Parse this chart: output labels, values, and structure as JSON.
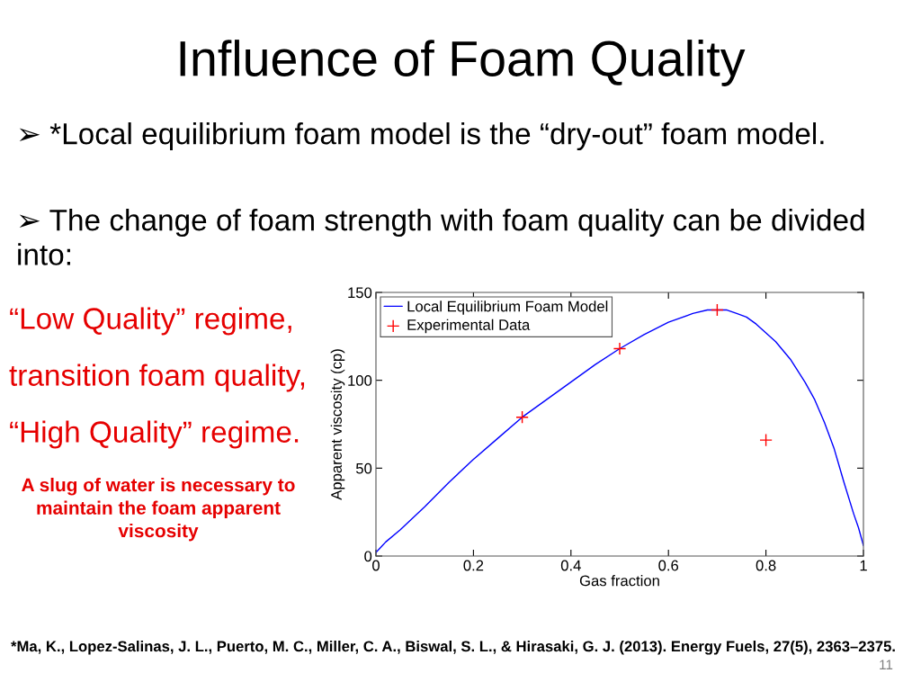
{
  "chart_data": {
    "type": "line",
    "title": "Influence of Foam Quality",
    "xlabel": "Gas fraction",
    "ylabel": "Apparent viscosity (cp)",
    "xlim": [
      0,
      1
    ],
    "xticks": [
      0,
      0.2,
      0.4,
      0.6,
      0.8,
      1
    ],
    "ylim": [
      0,
      150
    ],
    "yticks": [
      0,
      50,
      100,
      150
    ],
    "legend": "top left",
    "series": [
      {
        "name": "Local Equilibrium Foam Model",
        "color": "#0000ff",
        "line_style": "solid",
        "x": [
          0,
          0.01,
          0.02,
          0.05,
          0.1,
          0.15,
          0.2,
          0.25,
          0.3,
          0.35,
          0.4,
          0.45,
          0.5,
          0.55,
          0.6,
          0.65,
          0.68,
          0.7,
          0.72,
          0.74,
          0.76,
          0.78,
          0.8,
          0.82,
          0.85,
          0.88,
          0.9,
          0.92,
          0.94,
          0.96,
          0.98,
          0.99,
          1
        ],
        "values": [
          2,
          5,
          8,
          15,
          28,
          42,
          55,
          67,
          79,
          89,
          99,
          109,
          118,
          126,
          133,
          138,
          140,
          140,
          140,
          138,
          136,
          132,
          127,
          122,
          112,
          99,
          89,
          76,
          61,
          42,
          24,
          16,
          6
        ]
      },
      {
        "name": "Experimental Data",
        "type": "scatter",
        "marker": "cross",
        "color": "#ff0000",
        "x": [
          0.3,
          0.5,
          0.7,
          0.8
        ],
        "values": [
          79,
          118,
          140,
          66
        ]
      }
    ],
    "annotations": [
      "➢ *Local equilibrium foam model is the “dry-out” foam model.",
      "➢ The change of foam strength with foam quality can be divided into:",
      "“Low Quality” regime,",
      "transition foam quality,",
      "“High Quality” regime.",
      "A slug of water is necessary to maintain the foam apparent viscosity",
      "*Ma, K., Lopez-Salinas, J. L., Puerto, M. C., Miller, C. A., Biswal, S. L., & Hirasaki, G. J. (2013). Energy Fuels, 27(5), 2363–2375.",
      "11"
    ]
  }
}
